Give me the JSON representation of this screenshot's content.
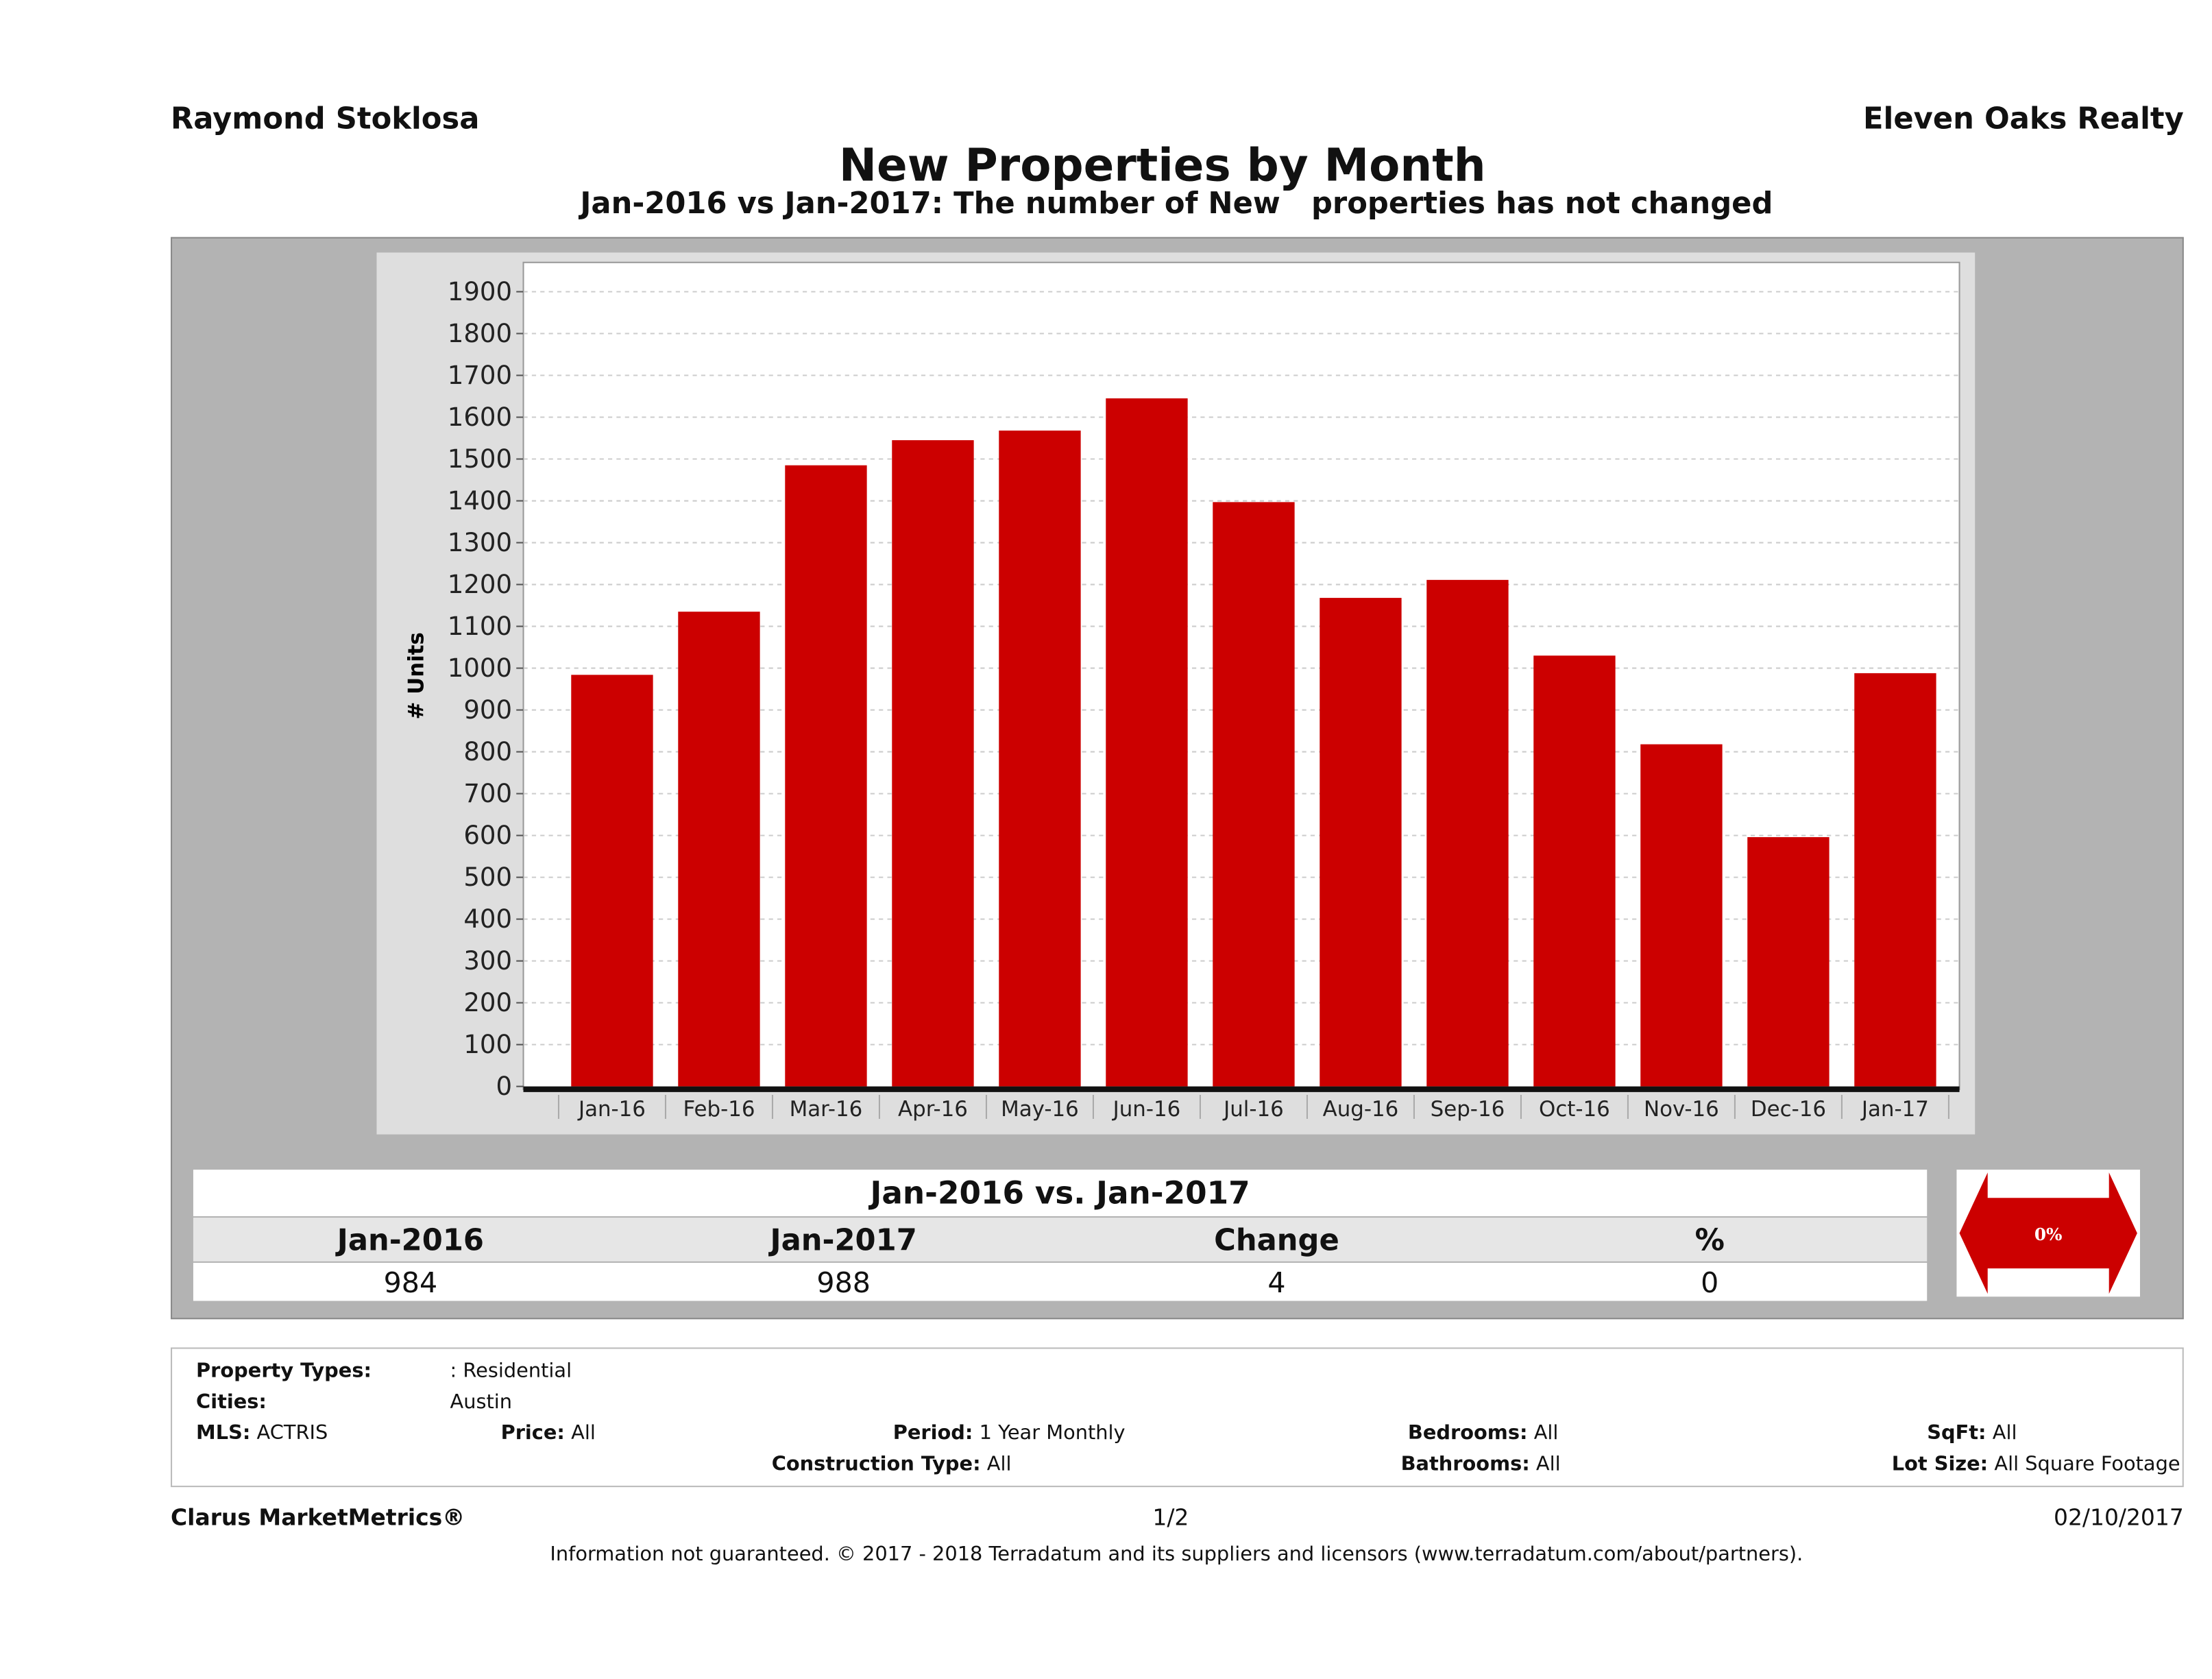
{
  "header": {
    "left": "Raymond Stoklosa",
    "right": "Eleven Oaks Realty",
    "title": "New Properties by Month",
    "subtitle": "Jan-2016 vs Jan-2017: The number of New   properties has not changed"
  },
  "chart_data": {
    "type": "bar",
    "title": "New Properties by Month",
    "ylabel": "# Units",
    "xlabel": "",
    "ylim": [
      0,
      1970
    ],
    "yticks": [
      0,
      100,
      200,
      300,
      400,
      500,
      600,
      700,
      800,
      900,
      1000,
      1100,
      1200,
      1300,
      1400,
      1500,
      1600,
      1700,
      1800,
      1900
    ],
    "grid": true,
    "categories": [
      "Jan-16",
      "Feb-16",
      "Mar-16",
      "Apr-16",
      "May-16",
      "Jun-16",
      "Jul-16",
      "Aug-16",
      "Sep-16",
      "Oct-16",
      "Nov-16",
      "Dec-16",
      "Jan-17"
    ],
    "values": [
      984,
      1135,
      1485,
      1545,
      1568,
      1645,
      1397,
      1168,
      1211,
      1030,
      818,
      596,
      988
    ],
    "bar_color": "#cc0000"
  },
  "summary": {
    "title": "Jan-2016 vs. Jan-2017",
    "headers": [
      "Jan-2016",
      "Jan-2017",
      "Change",
      "%"
    ],
    "values": [
      "984",
      "988",
      "4",
      "0"
    ],
    "badge": "0%",
    "badge_color": "#cc0000",
    "badge_icon": "double-arrow-icon"
  },
  "filters": {
    "property_types_label": "Property Types:",
    "property_types": ": Residential",
    "cities_label": "Cities:",
    "cities": "Austin",
    "mls_label": "MLS:",
    "mls": "ACTRIS",
    "price_label": "Price:",
    "price": "All",
    "period_label": "Period:",
    "period": "1 Year Monthly",
    "bedrooms_label": "Bedrooms:",
    "bedrooms": "All",
    "sqft_label": "SqFt:",
    "sqft": "All",
    "construction_label": "Construction Type:",
    "construction": "All",
    "bathrooms_label": "Bathrooms:",
    "bathrooms": "All",
    "lotsize_label": "Lot Size:",
    "lotsize": "All Square Footage"
  },
  "footer": {
    "brand": "Clarus MarketMetrics®",
    "page": "1/2",
    "date": "02/10/2017",
    "disclaimer": "Information not guaranteed. © 2017 - 2018 Terradatum and its suppliers and licensors (www.terradatum.com/about/partners)."
  }
}
